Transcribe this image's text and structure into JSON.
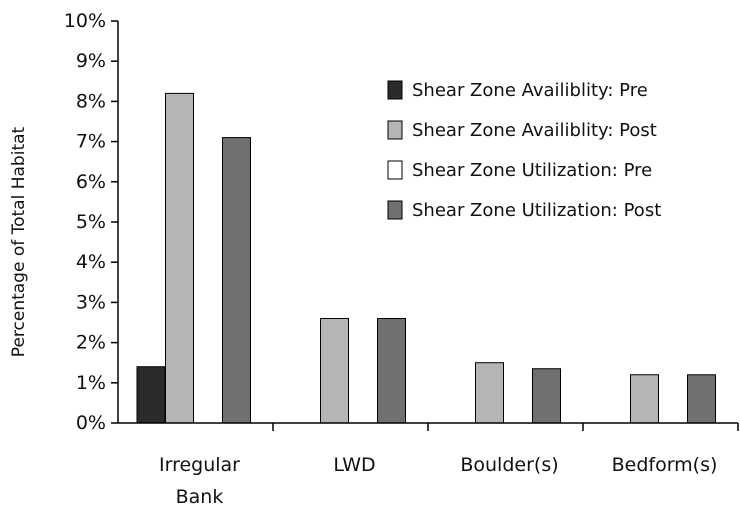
{
  "chart_data": {
    "type": "bar",
    "title": "",
    "xlabel": "",
    "ylabel": "Percentage of Total Habitat",
    "ylim": [
      0,
      10
    ],
    "ytick_step": 1,
    "ytick_labels": [
      "0%",
      "1%",
      "2%",
      "3%",
      "4%",
      "5%",
      "6%",
      "7%",
      "8%",
      "9%",
      "10%"
    ],
    "categories": [
      [
        "Irregular",
        "Bank"
      ],
      [
        "LWD"
      ],
      [
        "Boulder(s)"
      ],
      [
        "Bedform(s)"
      ]
    ],
    "series": [
      {
        "name": "Shear Zone Availiblity: Pre",
        "color": "#2b2b2b",
        "values": [
          1.4,
          0,
          0,
          0
        ]
      },
      {
        "name": "Shear Zone Availiblity: Post",
        "color": "#b5b5b5",
        "values": [
          8.2,
          2.6,
          1.5,
          1.2
        ]
      },
      {
        "name": "Shear Zone Utilization: Pre",
        "color": "#ffffff",
        "values": [
          0,
          0,
          0,
          0
        ]
      },
      {
        "name": "Shear Zone Utilization: Post",
        "color": "#707070",
        "values": [
          7.1,
          2.6,
          1.35,
          1.2
        ]
      }
    ],
    "grid": false,
    "legend_position": "top-right"
  }
}
